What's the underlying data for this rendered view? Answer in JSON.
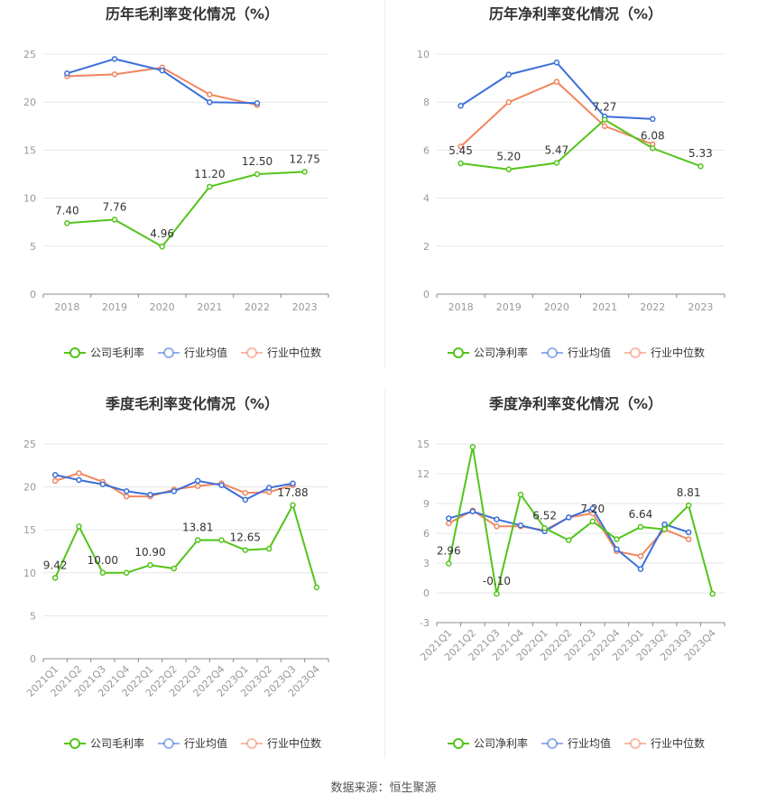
{
  "source_text": "数据来源：恒生聚源",
  "colors": {
    "company": "#52c41a",
    "avg": "#3b6fd8",
    "median": "#f0855e",
    "grid": "#e6e6e6",
    "axis": "#999999",
    "tick": "#999999"
  },
  "legend_labels": {
    "gross": [
      "公司毛利率",
      "行业均值",
      "行业中位数"
    ],
    "net": [
      "公司净利率",
      "行业均值",
      "行业中位数"
    ]
  },
  "chart_data": [
    {
      "type": "line",
      "title": "历年毛利率变化情况（%）",
      "categories": [
        "2018",
        "2019",
        "2020",
        "2021",
        "2022",
        "2023"
      ],
      "ylim": [
        0,
        25
      ],
      "yticks": [
        0,
        5,
        10,
        15,
        20,
        25
      ],
      "legend": "gross",
      "series": [
        {
          "name": "公司毛利率",
          "key": "company",
          "values": [
            7.4,
            7.76,
            4.96,
            11.2,
            12.5,
            12.75
          ],
          "labels": [
            "7.40",
            "7.76",
            "4.96",
            "11.20",
            "12.50",
            "12.75"
          ]
        },
        {
          "name": "行业均值",
          "key": "avg",
          "values": [
            23.0,
            24.5,
            23.3,
            20.0,
            19.9,
            null
          ]
        },
        {
          "name": "行业中位数",
          "key": "median",
          "values": [
            22.7,
            22.9,
            23.6,
            20.8,
            19.7,
            null
          ]
        }
      ]
    },
    {
      "type": "line",
      "title": "历年净利率变化情况（%）",
      "categories": [
        "2018",
        "2019",
        "2020",
        "2021",
        "2022",
        "2023"
      ],
      "ylim": [
        0,
        10
      ],
      "yticks": [
        0,
        2,
        4,
        6,
        8,
        10
      ],
      "legend": "net",
      "series": [
        {
          "name": "公司净利率",
          "key": "company",
          "values": [
            5.45,
            5.2,
            5.47,
            7.27,
            6.08,
            5.33
          ],
          "labels": [
            "5.45",
            "5.20",
            "5.47",
            "7.27",
            "6.08",
            "5.33"
          ]
        },
        {
          "name": "行业均值",
          "key": "avg",
          "values": [
            7.85,
            9.15,
            9.65,
            7.4,
            7.3,
            null
          ]
        },
        {
          "name": "行业中位数",
          "key": "median",
          "values": [
            6.15,
            8.0,
            8.85,
            7.0,
            6.25,
            null
          ]
        }
      ]
    },
    {
      "type": "line",
      "title": "季度毛利率变化情况（%）",
      "categories": [
        "2021Q1",
        "2021Q2",
        "2021Q3",
        "2021Q4",
        "2022Q1",
        "2022Q2",
        "2022Q3",
        "2022Q4",
        "2023Q1",
        "2023Q2",
        "2023Q3",
        "2023Q4"
      ],
      "ylim": [
        0,
        25
      ],
      "yticks": [
        0,
        5,
        10,
        15,
        20,
        25
      ],
      "legend": "gross",
      "rotate_ticks": true,
      "series": [
        {
          "name": "公司毛利率",
          "key": "company",
          "values": [
            9.42,
            15.4,
            10.0,
            10.0,
            10.9,
            10.5,
            13.81,
            13.8,
            12.65,
            12.8,
            17.88,
            8.3
          ],
          "labels": [
            "9.42",
            null,
            "10.00",
            null,
            "10.90",
            null,
            "13.81",
            null,
            "12.65",
            null,
            "17.88",
            null
          ]
        },
        {
          "name": "行业均值",
          "key": "avg",
          "values": [
            21.4,
            20.8,
            20.3,
            19.5,
            19.1,
            19.5,
            20.7,
            20.2,
            18.5,
            19.9,
            20.4,
            null
          ]
        },
        {
          "name": "行业中位数",
          "key": "median",
          "values": [
            20.7,
            21.6,
            20.6,
            18.9,
            18.9,
            19.7,
            20.1,
            20.4,
            19.3,
            19.4,
            20.2,
            null
          ]
        }
      ]
    },
    {
      "type": "line",
      "title": "季度净利率变化情况（%）",
      "categories": [
        "2021Q1",
        "2021Q2",
        "2021Q3",
        "2021Q4",
        "2022Q1",
        "2022Q2",
        "2022Q3",
        "2022Q4",
        "2023Q1",
        "2023Q2",
        "2023Q3",
        "2023Q4"
      ],
      "ylim": [
        -3,
        15
      ],
      "yticks": [
        -3,
        0,
        3,
        6,
        9,
        12,
        15
      ],
      "legend": "net",
      "rotate_ticks": true,
      "series": [
        {
          "name": "公司净利率",
          "key": "company",
          "values": [
            2.96,
            14.7,
            -0.1,
            9.9,
            6.52,
            5.3,
            7.2,
            5.4,
            6.64,
            6.4,
            8.81,
            -0.1
          ],
          "labels": [
            "2.96",
            null,
            "-0.10",
            null,
            "6.52",
            null,
            "7.20",
            null,
            "6.64",
            null,
            "8.81",
            null
          ]
        },
        {
          "name": "行业均值",
          "key": "avg",
          "values": [
            7.5,
            8.2,
            7.4,
            6.8,
            6.2,
            7.6,
            8.5,
            4.4,
            2.4,
            6.9,
            6.1,
            null
          ]
        },
        {
          "name": "行业中位数",
          "key": "median",
          "values": [
            7.0,
            8.3,
            6.7,
            6.7,
            6.3,
            7.6,
            8.0,
            4.2,
            3.7,
            6.4,
            5.4,
            null
          ]
        }
      ]
    }
  ]
}
